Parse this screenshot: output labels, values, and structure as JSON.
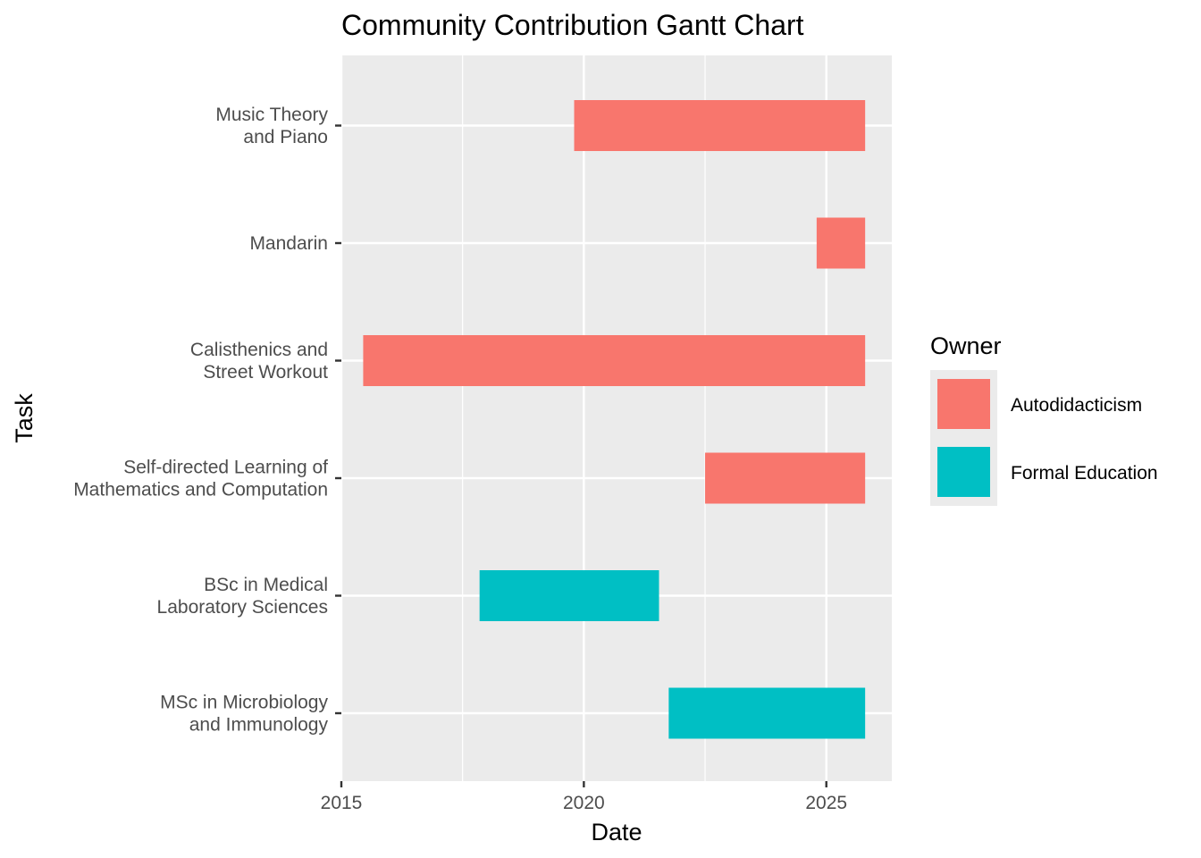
{
  "chart_data": {
    "type": "bar",
    "orientation": "horizontal",
    "title": "Community Contribution Gantt Chart",
    "xlabel": "Date",
    "ylabel": "Task",
    "x_ticks": [
      "2015",
      "2020",
      "2025"
    ],
    "x_tick_values": [
      2015,
      2020,
      2025
    ],
    "xlim": [
      2015.0,
      2026.35
    ],
    "grid": true,
    "legend": {
      "title": "Owner",
      "position": "right",
      "entries": [
        {
          "name": "Autodidacticism",
          "color": "#F8766D"
        },
        {
          "name": "Formal Education",
          "color": "#00BFC4"
        }
      ]
    },
    "tasks": [
      {
        "label_lines": [
          "Music Theory",
          "and Piano"
        ],
        "owner": "Autodidacticism",
        "start": 2019.8,
        "end": 2025.8
      },
      {
        "label_lines": [
          "Mandarin"
        ],
        "owner": "Autodidacticism",
        "start": 2024.8,
        "end": 2025.8
      },
      {
        "label_lines": [
          "Calisthenics and",
          "Street Workout"
        ],
        "owner": "Autodidacticism",
        "start": 2015.45,
        "end": 2025.8
      },
      {
        "label_lines": [
          "Self-directed Learning of",
          "Mathematics and Computation"
        ],
        "owner": "Autodidacticism",
        "start": 2022.5,
        "end": 2025.8
      },
      {
        "label_lines": [
          "BSc in Medical",
          "Laboratory Sciences"
        ],
        "owner": "Formal Education",
        "start": 2017.85,
        "end": 2021.55
      },
      {
        "label_lines": [
          "MSc in Microbiology",
          "and Immunology"
        ],
        "owner": "Formal Education",
        "start": 2021.75,
        "end": 2025.8
      }
    ]
  }
}
